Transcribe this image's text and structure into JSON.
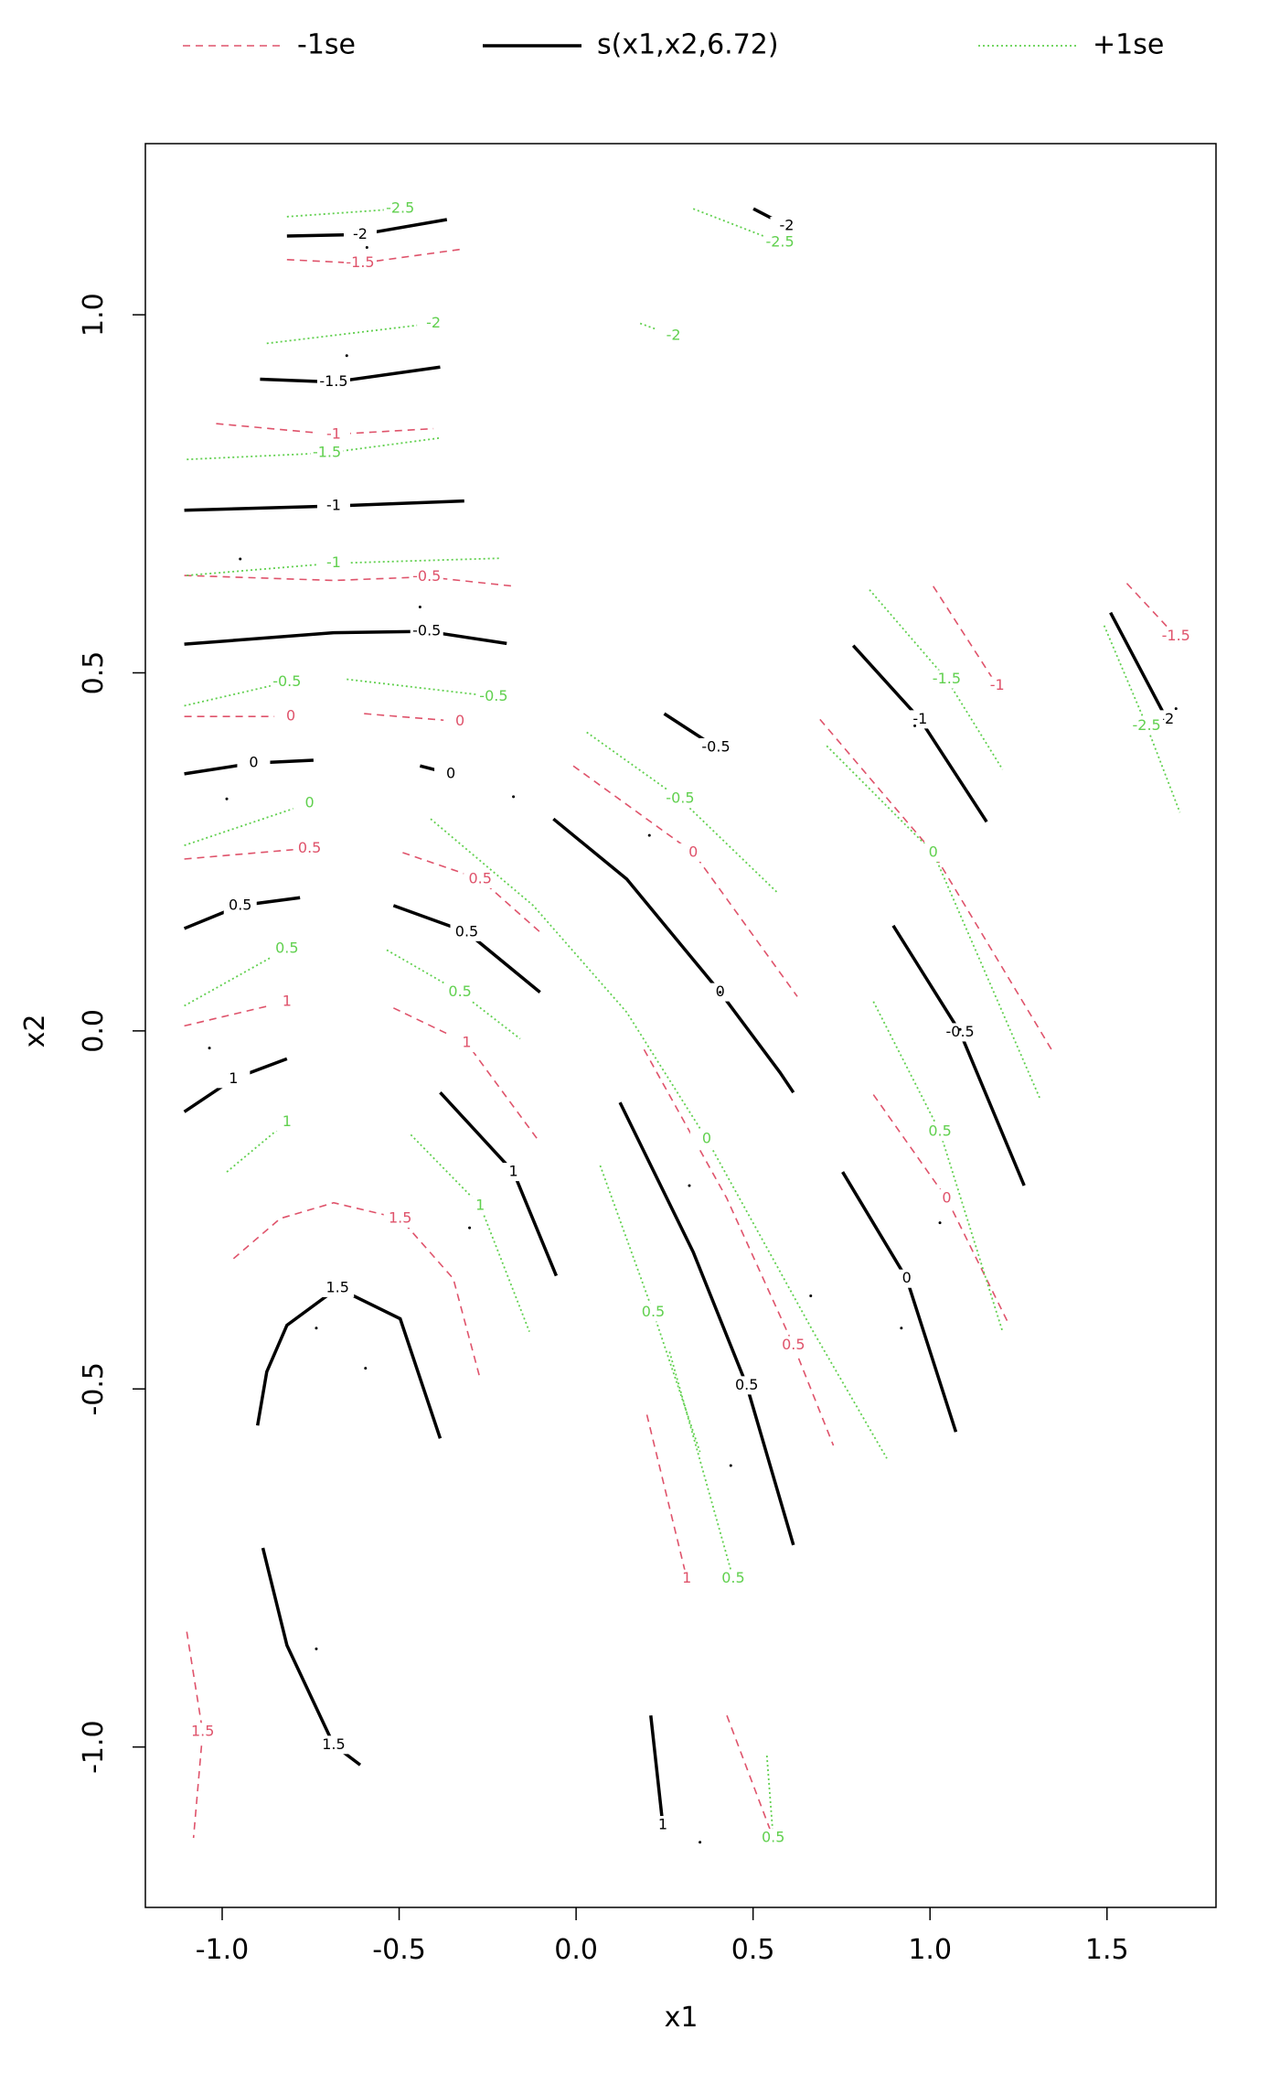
{
  "chart_data": {
    "type": "contour",
    "xlabel": "x1",
    "ylabel": "x2",
    "xlim": [
      -1.217,
      1.808
    ],
    "ylim": [
      -1.224,
      1.239
    ],
    "xticks": [
      {
        "value": -1,
        "label": "-1.0"
      },
      -0.5,
      {
        "value": 0,
        "label": "0.0"
      },
      0.5,
      {
        "value": 1,
        "label": "1.0"
      },
      1.5
    ],
    "yticks": [
      {
        "value": -1,
        "label": "-1.0"
      },
      -0.5,
      {
        "value": 0,
        "label": "0.0"
      },
      0.5,
      {
        "value": 1,
        "label": "1.0"
      }
    ],
    "series": [
      {
        "name": "-1se",
        "color": "#DF536B",
        "line_style": "dashed",
        "contours": [
          {
            "level": -1.5,
            "x": [
              -0.817,
              -0.61,
              -0.317
            ],
            "y": [
              1.077,
              1.072,
              1.092
            ]
          },
          {
            "level": -1,
            "x": [
              -1.017,
              -0.685,
              -0.403
            ],
            "y": [
              0.848,
              0.833,
              0.841
            ]
          },
          {
            "level": -0.5,
            "x": [
              -1.107,
              -0.685,
              -0.422,
              -0.177
            ],
            "y": [
              0.636,
              0.629,
              0.634,
              0.621
            ]
          },
          {
            "level": 0,
            "x": [
              -1.107,
              -0.806
            ],
            "y": [
              0.439,
              0.439
            ]
          },
          {
            "level": 0,
            "x": [
              -0.599,
              -0.328
            ],
            "y": [
              0.443,
              0.432
            ]
          },
          {
            "level": 0,
            "x": [
              -0.008,
              0.331,
              0.625
            ],
            "y": [
              0.37,
              0.249,
              0.048
            ]
          },
          {
            "level": -0.5,
            "x": [
              0.689,
              1.009,
              1.348
            ],
            "y": [
              0.435,
              0.249,
              -0.03
            ]
          },
          {
            "level": -1,
            "x": [
              1.009,
              1.19
            ],
            "y": [
              0.621,
              0.482
            ]
          },
          {
            "level": -1.5,
            "x": [
              1.556,
              1.695
            ],
            "y": [
              0.625,
              0.551
            ]
          },
          {
            "level": 0.5,
            "x": [
              -1.107,
              -0.753
            ],
            "y": [
              0.24,
              0.255
            ]
          },
          {
            "level": 0.5,
            "x": [
              -0.49,
              -0.271,
              -0.102
            ],
            "y": [
              0.249,
              0.212,
              0.138
            ]
          },
          {
            "level": 1,
            "x": [
              -1.107,
              -0.817
            ],
            "y": [
              0.007,
              0.041
            ]
          },
          {
            "level": 1,
            "x": [
              -0.516,
              -0.309,
              -0.102
            ],
            "y": [
              0.032,
              -0.017,
              -0.156
            ]
          },
          {
            "level": 0.5,
            "x": [
              0.192,
              0.426,
              0.614,
              0.727
            ],
            "y": [
              -0.026,
              -0.234,
              -0.439,
              -0.579
            ]
          },
          {
            "level": 0,
            "x": [
              0.84,
              1.047,
              1.224
            ],
            "y": [
              -0.089,
              -0.234,
              -0.411
            ]
          },
          {
            "level": 1.5,
            "x": [
              -0.968,
              -0.836,
              -0.685,
              -0.497,
              -0.347,
              -0.271
            ],
            "y": [
              -0.318,
              -0.262,
              -0.24,
              -0.262,
              -0.346,
              -0.486
            ]
          },
          {
            "level": 1,
            "x": [
              0.2,
              0.313
            ],
            "y": [
              -0.536,
              -0.765
            ]
          },
          {
            "level": 1.5,
            "x": [
              -1.1,
              -1.055,
              -1.081
            ],
            "y": [
              -0.839,
              -0.979,
              -1.127
            ]
          },
          {
            "level": 0.5,
            "x": [
              0.426,
              0.557
            ],
            "y": [
              -0.956,
              -1.127
            ]
          }
        ]
      },
      {
        "name": "s(x1,x2,6.72)",
        "color": "#000000",
        "line_style": "solid",
        "contours": [
          {
            "level": -2,
            "x": [
              -0.817,
              -0.61,
              -0.365
            ],
            "y": [
              1.11,
              1.112,
              1.133
            ]
          },
          {
            "level": -2,
            "x": [
              0.501,
              0.595
            ],
            "y": [
              1.148,
              1.124
            ]
          },
          {
            "level": -1.5,
            "x": [
              -0.893,
              -0.685,
              -0.384
            ],
            "y": [
              0.91,
              0.906,
              0.927
            ]
          },
          {
            "level": -1,
            "x": [
              -1.107,
              -0.685,
              -0.316
            ],
            "y": [
              0.727,
              0.733,
              0.74
            ]
          },
          {
            "level": -0.5,
            "x": [
              -1.107,
              -0.685,
              -0.422,
              -0.196
            ],
            "y": [
              0.54,
              0.556,
              0.558,
              0.541
            ]
          },
          {
            "level": -0.5,
            "x": [
              0.249,
              0.395
            ],
            "y": [
              0.443,
              0.396
            ]
          },
          {
            "level": -1,
            "x": [
              0.783,
              0.972,
              1.16
            ],
            "y": [
              0.538,
              0.435,
              0.292
            ]
          },
          {
            "level": -2,
            "x": [
              1.51,
              1.669
            ],
            "y": [
              0.584,
              0.435
            ]
          },
          {
            "level": 0,
            "x": [
              -1.107,
              -0.911,
              -0.742
            ],
            "y": [
              0.359,
              0.374,
              0.378
            ]
          },
          {
            "level": 0,
            "x": [
              -0.441,
              -0.354
            ],
            "y": [
              0.37,
              0.359
            ]
          },
          {
            "level": 0,
            "x": [
              -0.064,
              0.143,
              0.407,
              0.576,
              0.614
            ],
            "y": [
              0.296,
              0.212,
              0.054,
              -0.058,
              -0.086
            ]
          },
          {
            "level": 0.5,
            "x": [
              -1.107,
              -0.949,
              -0.78
            ],
            "y": [
              0.143,
              0.175,
              0.186
            ]
          },
          {
            "level": 0.5,
            "x": [
              -0.516,
              -0.309,
              -0.102
            ],
            "y": [
              0.175,
              0.138,
              0.054
            ]
          },
          {
            "level": -0.5,
            "x": [
              0.896,
              1.085,
              1.266
            ],
            "y": [
              0.147,
              -0.002,
              -0.216
            ]
          },
          {
            "level": 1,
            "x": [
              -1.107,
              -0.968,
              -0.817
            ],
            "y": [
              -0.113,
              -0.067,
              -0.039
            ]
          },
          {
            "level": 1,
            "x": [
              -0.384,
              -0.177,
              -0.056
            ],
            "y": [
              -0.086,
              -0.197,
              -0.342
            ]
          },
          {
            "level": 0.5,
            "x": [
              0.124,
              0.331,
              0.482,
              0.614
            ],
            "y": [
              -0.1,
              -0.309,
              -0.495,
              -0.718
            ]
          },
          {
            "level": 0,
            "x": [
              0.753,
              0.934,
              1.073
            ],
            "y": [
              -0.197,
              -0.346,
              -0.56
            ]
          },
          {
            "level": 1.5,
            "x": [
              -0.9,
              -0.874,
              -0.817,
              -0.674,
              -0.497,
              -0.384
            ],
            "y": [
              -0.551,
              -0.476,
              -0.411,
              -0.359,
              -0.402,
              -0.569
            ]
          },
          {
            "level": 1.5,
            "x": [
              -0.885,
              -0.817,
              -0.685,
              -0.61
            ],
            "y": [
              -0.722,
              -0.858,
              -0.997,
              -1.025
            ]
          },
          {
            "level": 1,
            "x": [
              0.211,
              0.245
            ],
            "y": [
              -0.956,
              -1.109
            ]
          }
        ]
      },
      {
        "name": "+1se",
        "color": "#61D04F",
        "line_style": "dotted",
        "contours": [
          {
            "level": -2.5,
            "x": [
              -0.817,
              -0.497
            ],
            "y": [
              1.137,
              1.148
            ]
          },
          {
            "level": -2,
            "x": [
              -0.874,
              -0.403
            ],
            "y": [
              0.96,
              0.988
            ]
          },
          {
            "level": -1.5,
            "x": [
              -1.1,
              -0.704,
              -0.384
            ],
            "y": [
              0.798,
              0.807,
              0.828
            ]
          },
          {
            "level": -1,
            "x": [
              -1.1,
              -0.685,
              -0.214
            ],
            "y": [
              0.636,
              0.653,
              0.66
            ]
          },
          {
            "level": -0.5,
            "x": [
              -1.107,
              -0.817
            ],
            "y": [
              0.454,
              0.487
            ]
          },
          {
            "level": -0.5,
            "x": [
              -0.648,
              -0.233
            ],
            "y": [
              0.491,
              0.467
            ]
          },
          {
            "level": -2.5,
            "x": [
              0.331,
              0.576
            ],
            "y": [
              1.148,
              1.101
            ]
          },
          {
            "level": -2,
            "x": [
              0.181,
              0.275
            ],
            "y": [
              0.988,
              0.971
            ]
          },
          {
            "level": -1.5,
            "x": [
              0.829,
              1.047,
              1.205
            ],
            "y": [
              0.616,
              0.491,
              0.365
            ]
          },
          {
            "level": -2.5,
            "x": [
              1.492,
              1.612,
              1.706
            ],
            "y": [
              0.566,
              0.426,
              0.305
            ]
          },
          {
            "level": 0,
            "x": [
              -1.107,
              -0.753
            ],
            "y": [
              0.259,
              0.318
            ]
          },
          {
            "level": -0.5,
            "x": [
              0.03,
              0.294,
              0.569
            ],
            "y": [
              0.417,
              0.324,
              0.193
            ]
          },
          {
            "level": 0,
            "x": [
              0.708,
              1.009,
              1.311
            ],
            "y": [
              0.398,
              0.249,
              -0.095
            ]
          },
          {
            "level": 0.5,
            "x": [
              -1.107,
              -0.817
            ],
            "y": [
              0.035,
              0.115
            ]
          },
          {
            "level": 0.5,
            "x": [
              -0.535,
              -0.328,
              -0.158
            ],
            "y": [
              0.113,
              0.054,
              -0.011
            ]
          },
          {
            "level": 1,
            "x": [
              -0.987,
              -0.817
            ],
            "y": [
              -0.197,
              -0.127
            ]
          },
          {
            "level": 1,
            "x": [
              -0.467,
              -0.271,
              -0.132
            ],
            "y": [
              -0.145,
              -0.244,
              -0.42
            ]
          },
          {
            "level": 0,
            "x": [
              -0.411,
              -0.121,
              0.143,
              0.369,
              0.67,
              0.878
            ],
            "y": [
              0.296,
              0.175,
              0.026,
              -0.151,
              -0.42,
              -0.597
            ]
          },
          {
            "level": 0.5,
            "x": [
              0.068,
              0.218,
              0.35
            ],
            "y": [
              -0.188,
              -0.393,
              -0.588
            ]
          },
          {
            "level": 0.5,
            "x": [
              0.264,
              0.444
            ],
            "y": [
              -0.448,
              -0.765
            ]
          },
          {
            "level": 0.5,
            "x": [
              0.84,
              1.028,
              1.205
            ],
            "y": [
              0.041,
              -0.141,
              -0.42
            ]
          },
          {
            "level": 0.5,
            "x": [
              0.539,
              0.557
            ],
            "y": [
              -1.012,
              -1.127
            ]
          }
        ]
      }
    ],
    "points": {
      "x": [
        -0.591,
        -0.648,
        -0.949,
        -0.441,
        -0.987,
        -1.036,
        0.207,
        0.407,
        0.32,
        -0.301,
        -0.734,
        -0.595,
        0.663,
        0.919,
        1.028,
        1.085,
        0.957,
        0.437,
        -0.734,
        0.35,
        1.695,
        -0.177
      ],
      "y": [
        1.094,
        0.943,
        0.659,
        0.592,
        0.324,
        -0.024,
        0.273,
        0.054,
        -0.216,
        -0.275,
        -0.415,
        -0.471,
        -0.37,
        -0.415,
        -0.268,
        0.002,
        0.426,
        -0.607,
        -0.863,
        -1.133,
        0.45,
        0.327
      ]
    }
  }
}
